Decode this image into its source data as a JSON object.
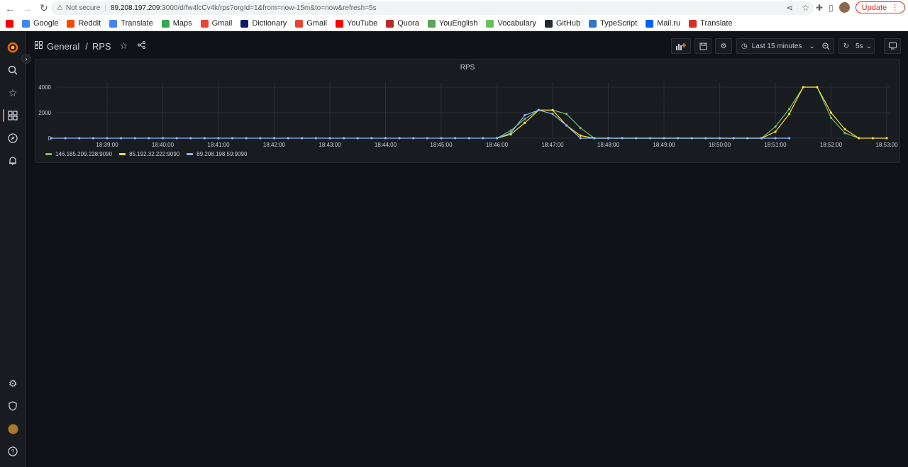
{
  "browser": {
    "not_secure": "Not secure",
    "url_host": "89.208.197.209",
    "url_path": ":3000/d/fw4lcCv4k/rps?orgId=1&from=now-15m&to=now&refresh=5s",
    "update_label": "Update"
  },
  "bookmarks": [
    {
      "label": "",
      "icon": "youtube-icon",
      "color": "#ff0000"
    },
    {
      "label": "Google",
      "icon": "google-icon",
      "color": "#4285f4"
    },
    {
      "label": "Reddit",
      "icon": "reddit-icon",
      "color": "#ff4500"
    },
    {
      "label": "Translate",
      "icon": "translate-icon",
      "color": "#4285f4"
    },
    {
      "label": "Maps",
      "icon": "maps-icon",
      "color": "#34a853"
    },
    {
      "label": "Gmail",
      "icon": "gmail-icon",
      "color": "#ea4335"
    },
    {
      "label": "Dictionary",
      "icon": "dictionary-icon",
      "color": "#0d1b6b"
    },
    {
      "label": "Gmail",
      "icon": "gmail-icon",
      "color": "#ea4335"
    },
    {
      "label": "YouTube",
      "icon": "youtube-icon",
      "color": "#ff0000"
    },
    {
      "label": "Quora",
      "icon": "quora-icon",
      "color": "#b92b27"
    },
    {
      "label": "YouEnglish",
      "icon": "youenglish-icon",
      "color": "#58a55c"
    },
    {
      "label": "Vocabulary",
      "icon": "vocabulary-icon",
      "color": "#6bbf59"
    },
    {
      "label": "GitHub",
      "icon": "github-icon",
      "color": "#24292f"
    },
    {
      "label": "TypeScript",
      "icon": "typescript-icon",
      "color": "#3178c6"
    },
    {
      "label": "Mail.ru",
      "icon": "mailru-icon",
      "color": "#005ff9"
    },
    {
      "label": "Translate",
      "icon": "translate-icon",
      "color": "#d93025"
    }
  ],
  "dashboard": {
    "folder": "General",
    "separator": "/",
    "title": "RPS",
    "time_range": "Last 15 minutes",
    "refresh": "5s"
  },
  "colors": {
    "green": "#73bf69",
    "yellow": "#fade2a",
    "blue": "#8ab8ff",
    "accent": "#ff7a1a"
  },
  "chart_data": {
    "type": "line",
    "title": "RPS",
    "xlabel": "",
    "ylabel": "",
    "ylim": [
      0,
      4000
    ],
    "yticks": [
      0,
      2000,
      4000
    ],
    "x_ticks": [
      "18:39:00",
      "18:40:00",
      "18:41:00",
      "18:42:00",
      "18:43:00",
      "18:44:00",
      "18:45:00",
      "18:46:00",
      "18:47:00",
      "18:48:00",
      "18:49:00",
      "18:50:00",
      "18:51:00",
      "18:52:00",
      "18:53:00"
    ],
    "grid": true,
    "legend": "bottom-left",
    "series": [
      {
        "name": "146.185.209.228:9090",
        "color": "#73bf69",
        "points": [
          [
            "18:46:00",
            0
          ],
          [
            "18:46:15",
            600
          ],
          [
            "18:46:30",
            1500
          ],
          [
            "18:46:45",
            2200
          ],
          [
            "18:47:00",
            2200
          ],
          [
            "18:47:15",
            1900
          ],
          [
            "18:47:30",
            800
          ],
          [
            "18:47:45",
            0
          ],
          [
            "18:48:00",
            0
          ],
          [
            "18:50:45",
            0
          ],
          [
            "18:51:00",
            900
          ],
          [
            "18:51:15",
            2300
          ],
          [
            "18:51:30",
            4000
          ],
          [
            "18:51:45",
            4000
          ],
          [
            "18:52:00",
            1600
          ],
          [
            "18:52:15",
            400
          ],
          [
            "18:52:30",
            0
          ]
        ]
      },
      {
        "name": "85.192.32.222:9090",
        "color": "#fade2a",
        "points": [
          [
            "18:46:00",
            0
          ],
          [
            "18:46:15",
            300
          ],
          [
            "18:46:30",
            1200
          ],
          [
            "18:46:45",
            2200
          ],
          [
            "18:47:00",
            2200
          ],
          [
            "18:47:15",
            1000
          ],
          [
            "18:47:30",
            200
          ],
          [
            "18:47:45",
            0
          ],
          [
            "18:48:00",
            0
          ],
          [
            "18:50:45",
            0
          ],
          [
            "18:51:00",
            500
          ],
          [
            "18:51:15",
            1900
          ],
          [
            "18:51:30",
            4000
          ],
          [
            "18:51:45",
            4000
          ],
          [
            "18:52:00",
            2000
          ],
          [
            "18:52:15",
            700
          ],
          [
            "18:52:30",
            0
          ],
          [
            "18:52:45",
            0
          ],
          [
            "18:53:00",
            0
          ]
        ]
      },
      {
        "name": "89.208.198.59:9090",
        "color": "#8ab8ff",
        "points": [
          [
            "18:38:00",
            0
          ],
          [
            "18:38:15",
            0
          ],
          [
            "18:38:30",
            0
          ],
          [
            "18:38:45",
            0
          ],
          [
            "18:39:00",
            0
          ],
          [
            "18:39:15",
            0
          ],
          [
            "18:39:30",
            0
          ],
          [
            "18:39:45",
            0
          ],
          [
            "18:40:00",
            0
          ],
          [
            "18:40:15",
            0
          ],
          [
            "18:40:30",
            0
          ],
          [
            "18:40:45",
            0
          ],
          [
            "18:41:00",
            0
          ],
          [
            "18:41:15",
            0
          ],
          [
            "18:41:30",
            0
          ],
          [
            "18:41:45",
            0
          ],
          [
            "18:42:00",
            0
          ],
          [
            "18:42:15",
            0
          ],
          [
            "18:42:30",
            0
          ],
          [
            "18:42:45",
            0
          ],
          [
            "18:43:00",
            0
          ],
          [
            "18:43:15",
            0
          ],
          [
            "18:43:30",
            0
          ],
          [
            "18:43:45",
            0
          ],
          [
            "18:44:00",
            0
          ],
          [
            "18:44:15",
            0
          ],
          [
            "18:44:30",
            0
          ],
          [
            "18:44:45",
            0
          ],
          [
            "18:45:00",
            0
          ],
          [
            "18:45:15",
            0
          ],
          [
            "18:45:30",
            0
          ],
          [
            "18:45:45",
            0
          ],
          [
            "18:46:00",
            0
          ],
          [
            "18:46:15",
            400
          ],
          [
            "18:46:30",
            1800
          ],
          [
            "18:46:45",
            2200
          ],
          [
            "18:47:00",
            1900
          ],
          [
            "18:47:15",
            1000
          ],
          [
            "18:47:30",
            0
          ],
          [
            "18:47:45",
            0
          ],
          [
            "18:48:00",
            0
          ],
          [
            "18:48:15",
            0
          ],
          [
            "18:48:30",
            0
          ],
          [
            "18:48:45",
            0
          ],
          [
            "18:49:00",
            0
          ],
          [
            "18:49:15",
            0
          ],
          [
            "18:49:30",
            0
          ],
          [
            "18:49:45",
            0
          ],
          [
            "18:50:00",
            0
          ],
          [
            "18:50:15",
            0
          ],
          [
            "18:50:30",
            0
          ],
          [
            "18:50:45",
            0
          ],
          [
            "18:51:00",
            0
          ],
          [
            "18:51:15",
            0
          ]
        ]
      }
    ]
  }
}
